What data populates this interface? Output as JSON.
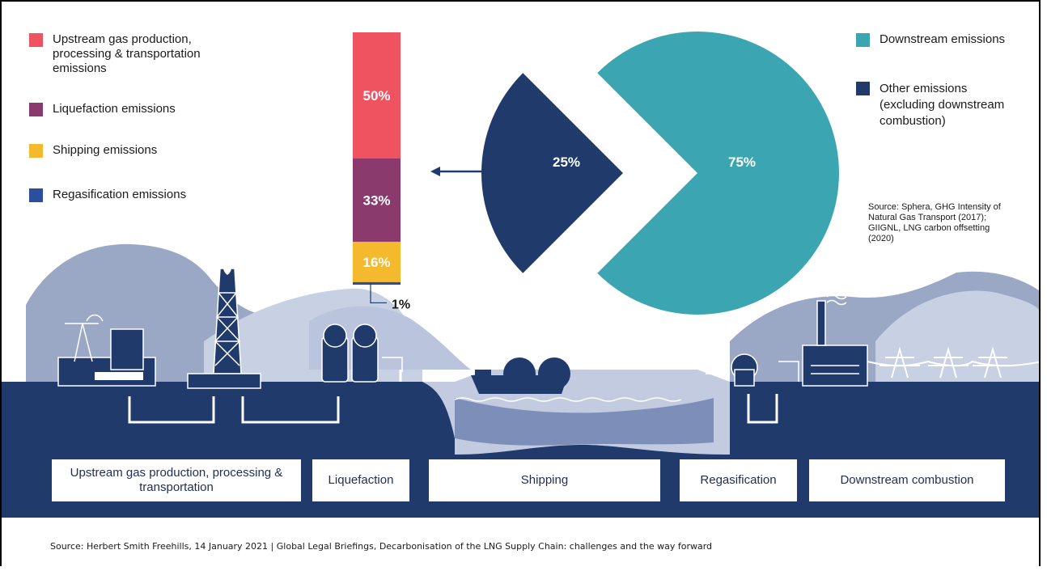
{
  "legend_left": [
    {
      "label": "Upstream gas production, processing & transportation emissions",
      "color": "#ef5360"
    },
    {
      "label": "Liquefaction emissions",
      "color": "#8b3a6e"
    },
    {
      "label": "Shipping emissions",
      "color": "#f5b92d"
    },
    {
      "label": "Regasification emissions",
      "color": "#2b4f9e"
    }
  ],
  "legend_right": [
    {
      "label": "Downstream emissions",
      "color": "#3ba6b2"
    },
    {
      "label": "Other emissions (excluding downstream combustion)",
      "color": "#1f3a6b"
    }
  ],
  "source_note": "Source: Sphera, GHG Intensity of Natural Gas Transport (2017); GIIGNL, LNG carbon offsetting (2020)",
  "stages": [
    "Upstream gas production, processing & transportation",
    "Liquefaction",
    "Shipping",
    "Regasification",
    "Downstream combustion"
  ],
  "footer": "Source: Herbert Smith Freehills, 14 January 2021 | Global Legal Briefings, Decarbonisation of the LNG Supply Chain: challenges and the way forward",
  "chart_data": [
    {
      "type": "bar",
      "stacked": true,
      "categories": [
        "Other emissions (excluding downstream combustion)"
      ],
      "series": [
        {
          "name": "Upstream gas production, processing & transportation emissions",
          "values": [
            50
          ],
          "label": "50%",
          "color": "#ef5360"
        },
        {
          "name": "Liquefaction emissions",
          "values": [
            33
          ],
          "label": "33%",
          "color": "#8b3a6e"
        },
        {
          "name": "Shipping emissions",
          "values": [
            16
          ],
          "label": "16%",
          "color": "#f5b92d"
        },
        {
          "name": "Regasification emissions",
          "values": [
            1
          ],
          "label": "1%",
          "color": "#2b4f9e"
        }
      ]
    },
    {
      "type": "pie",
      "categories": [
        "Downstream emissions",
        "Other emissions (excluding downstream combustion)"
      ],
      "values": [
        75,
        25
      ],
      "labels": [
        "75%",
        "25%"
      ],
      "colors": [
        "#3ba6b2",
        "#1f3a6b"
      ],
      "exploded": "Other emissions (excluding downstream combustion)"
    }
  ]
}
